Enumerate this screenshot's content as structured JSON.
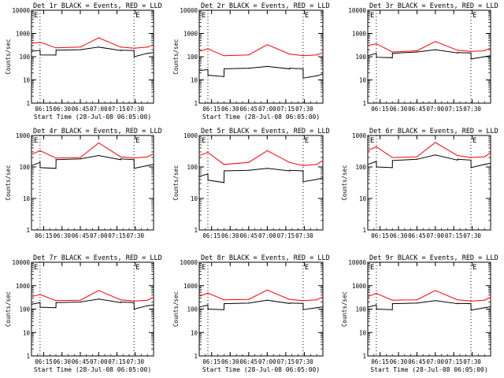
{
  "figure": {
    "series_colors": {
      "events": "#000000",
      "lld": "#ff0000"
    },
    "background": "#ffffff",
    "marker_labels": [
      "E",
      "E"
    ],
    "x_tick_labels": [
      "06:15",
      "06:30",
      "06:45",
      "07:00",
      "07:15",
      "07:30"
    ],
    "y_tick_labels": [
      "1",
      "10",
      "100",
      "1000",
      "10000"
    ]
  },
  "chart_data": [
    {
      "type": "line",
      "title": "Det 1r BLACK = Events, RED = LLD",
      "xlabel": "Start Time (28-Jul-08 06:05:00)",
      "ylabel": "Counts/sec",
      "y_scale": "log",
      "ylim": [
        1,
        10000
      ],
      "xlim": [
        "06:05",
        "07:45"
      ],
      "grid": false,
      "x_ticks": [
        "06:15",
        "06:30",
        "06:45",
        "07:00",
        "07:15",
        "07:30"
      ],
      "y_ticks": [
        "1",
        "10",
        "100",
        "1000",
        "10000"
      ],
      "markers": [
        {
          "label": "E",
          "x": "06:12"
        },
        {
          "label": "E",
          "x": "07:29"
        }
      ],
      "series": [
        {
          "name": "Events",
          "color": "#000000",
          "x": [
            "06:05",
            "06:12",
            "06:12.1",
            "06:25",
            "06:25.1",
            "06:45",
            "07:00",
            "07:18",
            "07:18.1",
            "07:29",
            "07:29.1",
            "07:40",
            "07:45"
          ],
          "values": [
            170,
            190,
            120,
            118,
            190,
            200,
            260,
            185,
            190,
            185,
            100,
            140,
            150
          ]
        },
        {
          "name": "LLD",
          "color": "#ff0000",
          "x": [
            "06:05",
            "06:12",
            "06:25",
            "06:45",
            "07:00",
            "07:18",
            "07:29",
            "07:40",
            "07:45"
          ],
          "values": [
            380,
            420,
            240,
            260,
            650,
            260,
            230,
            260,
            330
          ]
        }
      ]
    },
    {
      "type": "line",
      "title": "Det 2r BLACK = Events, RED = LLD",
      "xlabel": "Start Time (28-Jul-08 06:05:00)",
      "ylabel": "Counts/sec",
      "y_scale": "log",
      "ylim": [
        1,
        10000
      ],
      "xlim": [
        "06:05",
        "07:45"
      ],
      "grid": false,
      "x_ticks": [
        "06:15",
        "06:30",
        "06:45",
        "07:00",
        "07:15",
        "07:30"
      ],
      "y_ticks": [
        "1",
        "10",
        "100",
        "1000",
        "10000"
      ],
      "markers": [
        {
          "label": "E",
          "x": "06:12"
        },
        {
          "label": "E",
          "x": "07:29"
        }
      ],
      "series": [
        {
          "name": "Events",
          "color": "#000000",
          "x": [
            "06:05",
            "06:12",
            "06:12.1",
            "06:25",
            "06:25.1",
            "06:45",
            "07:00",
            "07:18",
            "07:18.1",
            "07:29",
            "07:29.1",
            "07:40",
            "07:45"
          ],
          "values": [
            25,
            28,
            16,
            14,
            30,
            32,
            38,
            30,
            32,
            30,
            12,
            15,
            18
          ]
        },
        {
          "name": "LLD",
          "color": "#ff0000",
          "x": [
            "06:05",
            "06:12",
            "06:25",
            "06:45",
            "07:00",
            "07:18",
            "07:29",
            "07:40",
            "07:45"
          ],
          "values": [
            170,
            220,
            110,
            120,
            330,
            130,
            110,
            120,
            150
          ]
        }
      ]
    },
    {
      "type": "line",
      "title": "Det 3r BLACK = Events, RED = LLD",
      "xlabel": "",
      "ylabel": "",
      "y_scale": "log",
      "ylim": [
        1,
        10000
      ],
      "xlim": [
        "06:05",
        "07:45"
      ],
      "grid": false,
      "x_ticks": [
        "06:15",
        "06:30",
        "06:45",
        "07:00",
        "07:15",
        "07:30"
      ],
      "y_ticks": [
        "1",
        "10",
        "100",
        "1000",
        "10000"
      ],
      "markers": [
        {
          "label": "E",
          "x": "06:12"
        },
        {
          "label": "E",
          "x": "07:29"
        }
      ],
      "series": [
        {
          "name": "Events",
          "color": "#000000",
          "x": [
            "06:05",
            "06:12",
            "06:12.1",
            "06:25",
            "06:25.1",
            "06:45",
            "07:00",
            "07:18",
            "07:18.1",
            "07:29",
            "07:29.1",
            "07:40",
            "07:45"
          ],
          "values": [
            110,
            140,
            95,
            90,
            140,
            160,
            200,
            145,
            150,
            145,
            80,
            100,
            110
          ]
        },
        {
          "name": "LLD",
          "color": "#ff0000",
          "x": [
            "06:05",
            "06:12",
            "06:25",
            "06:45",
            "07:00",
            "07:18",
            "07:29",
            "07:40",
            "07:45"
          ],
          "values": [
            300,
            360,
            160,
            180,
            450,
            190,
            170,
            180,
            240
          ]
        }
      ]
    },
    {
      "type": "line",
      "title": "Det 4r BLACK = Events, RED = LLD",
      "xlabel": "",
      "ylabel": "Counts/sec",
      "y_scale": "log",
      "ylim": [
        1,
        1000
      ],
      "xlim": [
        "06:05",
        "07:45"
      ],
      "grid": false,
      "x_ticks": [
        "06:15",
        "06:30",
        "06:45",
        "07:00",
        "07:15",
        "07:30"
      ],
      "y_ticks": [
        "1",
        "10",
        "100",
        "1000"
      ],
      "markers": [
        {
          "label": "E",
          "x": "06:12"
        },
        {
          "label": "E",
          "x": "07:29"
        }
      ],
      "series": [
        {
          "name": "Events",
          "color": "#000000",
          "x": [
            "06:05",
            "06:12",
            "06:12.1",
            "06:25",
            "06:25.1",
            "06:45",
            "07:00",
            "07:18",
            "07:18.1",
            "07:29",
            "07:29.1",
            "07:40",
            "07:45"
          ],
          "values": [
            110,
            140,
            95,
            90,
            170,
            180,
            230,
            170,
            180,
            170,
            90,
            110,
            120
          ]
        },
        {
          "name": "LLD",
          "color": "#ff0000",
          "x": [
            "06:05",
            "06:12",
            "06:25",
            "06:45",
            "07:00",
            "07:18",
            "07:29",
            "07:40",
            "07:45"
          ],
          "values": [
            250,
            330,
            190,
            200,
            580,
            210,
            190,
            210,
            260
          ]
        }
      ]
    },
    {
      "type": "line",
      "title": "Det 5r BLACK = Events, RED = LLD",
      "xlabel": "",
      "ylabel": "Counts/sec",
      "y_scale": "log",
      "ylim": [
        1,
        1000
      ],
      "xlim": [
        "06:05",
        "07:45"
      ],
      "grid": false,
      "x_ticks": [
        "06:15",
        "06:30",
        "06:45",
        "07:00",
        "07:15",
        "07:30"
      ],
      "y_ticks": [
        "1",
        "10",
        "100",
        "1000"
      ],
      "markers": [
        {
          "label": "E",
          "x": "06:12"
        },
        {
          "label": "E",
          "x": "07:29"
        }
      ],
      "series": [
        {
          "name": "Events",
          "color": "#000000",
          "x": [
            "06:05",
            "06:12",
            "06:12.1",
            "06:25",
            "06:25.1",
            "06:45",
            "07:00",
            "07:18",
            "07:18.1",
            "07:29",
            "07:29.1",
            "07:40",
            "07:45"
          ],
          "values": [
            50,
            60,
            38,
            32,
            75,
            78,
            90,
            75,
            78,
            75,
            34,
            40,
            45
          ]
        },
        {
          "name": "LLD",
          "color": "#ff0000",
          "x": [
            "06:05",
            "06:12",
            "06:25",
            "06:45",
            "07:00",
            "07:18",
            "07:29",
            "07:40",
            "07:45"
          ],
          "values": [
            230,
            290,
            120,
            140,
            330,
            140,
            110,
            120,
            160
          ]
        }
      ]
    },
    {
      "type": "line",
      "title": "Det 6r BLACK = Events, RED = LLD",
      "xlabel": "",
      "ylabel": "Counts/sec",
      "y_scale": "log",
      "ylim": [
        1,
        1000
      ],
      "xlim": [
        "06:05",
        "07:45"
      ],
      "grid": false,
      "x_ticks": [
        "06:15",
        "06:30",
        "06:45",
        "07:00",
        "07:15",
        "07:30"
      ],
      "y_ticks": [
        "1",
        "10",
        "100",
        "1000"
      ],
      "markers": [
        {
          "label": "E",
          "x": "06:12"
        },
        {
          "label": "E",
          "x": "07:29"
        }
      ],
      "series": [
        {
          "name": "Events",
          "color": "#000000",
          "x": [
            "06:05",
            "06:12",
            "06:12.1",
            "06:25",
            "06:25.1",
            "06:45",
            "07:00",
            "07:18",
            "07:18.1",
            "07:29",
            "07:29.1",
            "07:40",
            "07:45"
          ],
          "values": [
            120,
            150,
            100,
            95,
            160,
            175,
            240,
            165,
            175,
            165,
            95,
            120,
            130
          ]
        },
        {
          "name": "LLD",
          "color": "#ff0000",
          "x": [
            "06:05",
            "06:12",
            "06:25",
            "06:45",
            "07:00",
            "07:18",
            "07:29",
            "07:40",
            "07:45"
          ],
          "values": [
            330,
            440,
            200,
            210,
            600,
            230,
            200,
            210,
            280
          ]
        }
      ]
    },
    {
      "type": "line",
      "title": "Det 7r BLACK = Events, RED = LLD",
      "xlabel": "Start Time (28-Jul-08 06:05:00)",
      "ylabel": "Counts/sec",
      "y_scale": "log",
      "ylim": [
        1,
        10000
      ],
      "xlim": [
        "06:05",
        "07:45"
      ],
      "grid": false,
      "x_ticks": [
        "06:15",
        "06:30",
        "06:45",
        "07:00",
        "07:15",
        "07:30"
      ],
      "y_ticks": [
        "1",
        "10",
        "100",
        "1000",
        "10000"
      ],
      "markers": [
        {
          "label": "E",
          "x": "06:12"
        },
        {
          "label": "E",
          "x": "07:29"
        }
      ],
      "series": [
        {
          "name": "Events",
          "color": "#000000",
          "x": [
            "06:05",
            "06:12",
            "06:12.1",
            "06:25",
            "06:25.1",
            "06:45",
            "07:00",
            "07:18",
            "07:18.1",
            "07:29",
            "07:29.1",
            "07:40",
            "07:45"
          ],
          "values": [
            160,
            190,
            120,
            115,
            190,
            200,
            270,
            190,
            200,
            190,
            100,
            140,
            150
          ]
        },
        {
          "name": "LLD",
          "color": "#ff0000",
          "x": [
            "06:05",
            "06:12",
            "06:25",
            "06:45",
            "07:00",
            "07:18",
            "07:29",
            "07:40",
            "07:45"
          ],
          "values": [
            340,
            420,
            230,
            240,
            620,
            250,
            220,
            240,
            320
          ]
        }
      ]
    },
    {
      "type": "line",
      "title": "Det 8r BLACK = Events, RED = LLD",
      "xlabel": "Start Time (28-Jul-08 06:05:00)",
      "ylabel": "Counts/sec",
      "y_scale": "log",
      "ylim": [
        1,
        10000
      ],
      "xlim": [
        "06:05",
        "07:45"
      ],
      "grid": false,
      "x_ticks": [
        "06:15",
        "06:30",
        "06:45",
        "07:00",
        "07:15",
        "07:30"
      ],
      "y_ticks": [
        "1",
        "10",
        "100",
        "1000",
        "10000"
      ],
      "markers": [
        {
          "label": "E",
          "x": "06:12"
        },
        {
          "label": "E",
          "x": "07:29"
        }
      ],
      "series": [
        {
          "name": "Events",
          "color": "#000000",
          "x": [
            "06:05",
            "06:12",
            "06:12.1",
            "06:25",
            "06:25.1",
            "06:45",
            "07:00",
            "07:18",
            "07:18.1",
            "07:29",
            "07:29.1",
            "07:40",
            "07:45"
          ],
          "values": [
            120,
            150,
            100,
            95,
            170,
            180,
            240,
            175,
            180,
            175,
            95,
            115,
            125
          ]
        },
        {
          "name": "LLD",
          "color": "#ff0000",
          "x": [
            "06:05",
            "06:12",
            "06:25",
            "06:45",
            "07:00",
            "07:18",
            "07:29",
            "07:40",
            "07:45"
          ],
          "values": [
            350,
            480,
            250,
            260,
            650,
            260,
            230,
            250,
            330
          ]
        }
      ]
    },
    {
      "type": "line",
      "title": "Det 9r BLACK = Events, RED = LLD",
      "xlabel": "Start Time (28-Jul-08 06:05:00)",
      "ylabel": "Counts/sec",
      "y_scale": "log",
      "ylim": [
        1,
        10000
      ],
      "xlim": [
        "06:05",
        "07:45"
      ],
      "grid": false,
      "x_ticks": [
        "06:15",
        "06:30",
        "06:45",
        "07:00",
        "07:15",
        "07:30"
      ],
      "y_ticks": [
        "1",
        "10",
        "100",
        "1000",
        "10000"
      ],
      "markers": [
        {
          "label": "E",
          "x": "06:12"
        },
        {
          "label": "E",
          "x": "07:29"
        }
      ],
      "series": [
        {
          "name": "Events",
          "color": "#000000",
          "x": [
            "06:05",
            "06:12",
            "06:12.1",
            "06:25",
            "06:25.1",
            "06:45",
            "07:00",
            "07:18",
            "07:18.1",
            "07:29",
            "07:29.1",
            "07:40",
            "07:45"
          ],
          "values": [
            120,
            150,
            100,
            95,
            170,
            180,
            230,
            170,
            175,
            170,
            90,
            115,
            125
          ]
        },
        {
          "name": "LLD",
          "color": "#ff0000",
          "x": [
            "06:05",
            "06:12",
            "06:25",
            "06:45",
            "07:00",
            "07:18",
            "07:29",
            "07:40",
            "07:45"
          ],
          "values": [
            340,
            470,
            240,
            250,
            620,
            250,
            220,
            240,
            320
          ]
        }
      ]
    }
  ]
}
